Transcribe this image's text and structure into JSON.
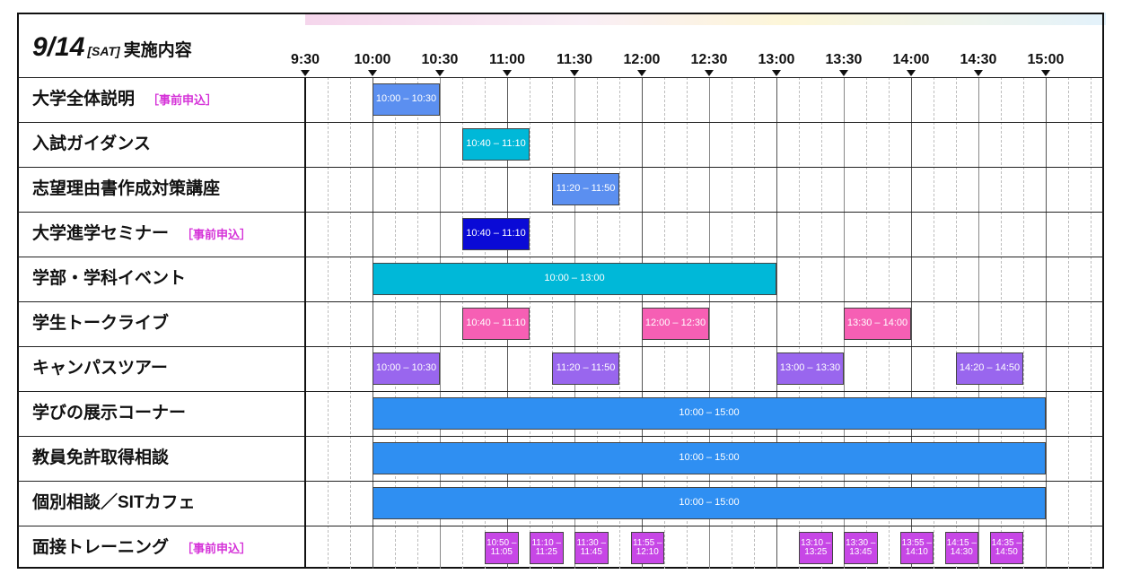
{
  "header": {
    "date": "9/14",
    "weekday": "[SAT]",
    "label": "実施内容"
  },
  "colors": {
    "periwinkle": "#5b8ff0",
    "teal": "#00b8d8",
    "navy": "#0a0ad6",
    "pink": "#f65fb4",
    "lavender": "#9966ee",
    "azure": "#2f8ff2",
    "magenta": "#c747e6"
  },
  "times": [
    "9:30",
    "10:00",
    "10:30",
    "11:00",
    "11:30",
    "12:00",
    "12:30",
    "13:00",
    "13:30",
    "14:00",
    "14:30",
    "15:00"
  ],
  "rows": [
    {
      "label": "大学全体説明",
      "note": "［事前申込］",
      "events": [
        {
          "start": "10:00",
          "end": "10:30",
          "text": "10:00 – 10:30",
          "color": "periwinkle"
        }
      ]
    },
    {
      "label": "入試ガイダンス",
      "note": "",
      "events": [
        {
          "start": "10:40",
          "end": "11:10",
          "text": "10:40 – 11:10",
          "color": "teal"
        }
      ]
    },
    {
      "label": "志望理由書作成対策講座",
      "note": "",
      "events": [
        {
          "start": "11:20",
          "end": "11:50",
          "text": "11:20 – 11:50",
          "color": "periwinkle"
        }
      ]
    },
    {
      "label": "大学進学セミナー",
      "note": "［事前申込］",
      "events": [
        {
          "start": "10:40",
          "end": "11:10",
          "text": "10:40 – 11:10",
          "color": "navy"
        }
      ]
    },
    {
      "label": "学部・学科イベント",
      "note": "",
      "events": [
        {
          "start": "10:00",
          "end": "13:00",
          "text": "10:00 – 13:00",
          "color": "teal"
        }
      ]
    },
    {
      "label": "学生トークライブ",
      "note": "",
      "events": [
        {
          "start": "10:40",
          "end": "11:10",
          "text": "10:40 – 11:10",
          "color": "pink"
        },
        {
          "start": "12:00",
          "end": "12:30",
          "text": "12:00 – 12:30",
          "color": "pink"
        },
        {
          "start": "13:30",
          "end": "14:00",
          "text": "13:30 – 14:00",
          "color": "pink"
        }
      ]
    },
    {
      "label": "キャンパスツアー",
      "note": "",
      "events": [
        {
          "start": "10:00",
          "end": "10:30",
          "text": "10:00 – 10:30",
          "color": "lavender"
        },
        {
          "start": "11:20",
          "end": "11:50",
          "text": "11:20 – 11:50",
          "color": "lavender"
        },
        {
          "start": "13:00",
          "end": "13:30",
          "text": "13:00 – 13:30",
          "color": "lavender"
        },
        {
          "start": "14:20",
          "end": "14:50",
          "text": "14:20 – 14:50",
          "color": "lavender"
        }
      ]
    },
    {
      "label": "学びの展示コーナー",
      "note": "",
      "events": [
        {
          "start": "10:00",
          "end": "15:00",
          "text": "10:00 – 15:00",
          "color": "azure"
        }
      ]
    },
    {
      "label": "教員免許取得相談",
      "note": "",
      "events": [
        {
          "start": "10:00",
          "end": "15:00",
          "text": "10:00 – 15:00",
          "color": "azure"
        }
      ]
    },
    {
      "label": "個別相談／SITカフェ",
      "note": "",
      "events": [
        {
          "start": "10:00",
          "end": "15:00",
          "text": "10:00 – 15:00",
          "color": "azure"
        }
      ]
    },
    {
      "label": "面接トレーニング",
      "note": "［事前申込］",
      "events": [
        {
          "start": "10:50",
          "end": "11:05",
          "text": "10:50 – 11:05",
          "color": "magenta"
        },
        {
          "start": "11:10",
          "end": "11:25",
          "text": "11:10 – 11:25",
          "color": "magenta"
        },
        {
          "start": "11:30",
          "end": "11:45",
          "text": "11:30 – 11:45",
          "color": "magenta"
        },
        {
          "start": "11:55",
          "end": "12:10",
          "text": "11:55 – 12:10",
          "color": "magenta"
        },
        {
          "start": "13:10",
          "end": "13:25",
          "text": "13:10 – 13:25",
          "color": "magenta"
        },
        {
          "start": "13:30",
          "end": "13:45",
          "text": "13:30 – 13:45",
          "color": "magenta"
        },
        {
          "start": "13:55",
          "end": "14:10",
          "text": "13:55 – 14:10",
          "color": "magenta"
        },
        {
          "start": "14:15",
          "end": "14:30",
          "text": "14:15 – 14:30",
          "color": "magenta"
        },
        {
          "start": "14:35",
          "end": "14:50",
          "text": "14:35 – 14:50",
          "color": "magenta"
        }
      ]
    }
  ]
}
